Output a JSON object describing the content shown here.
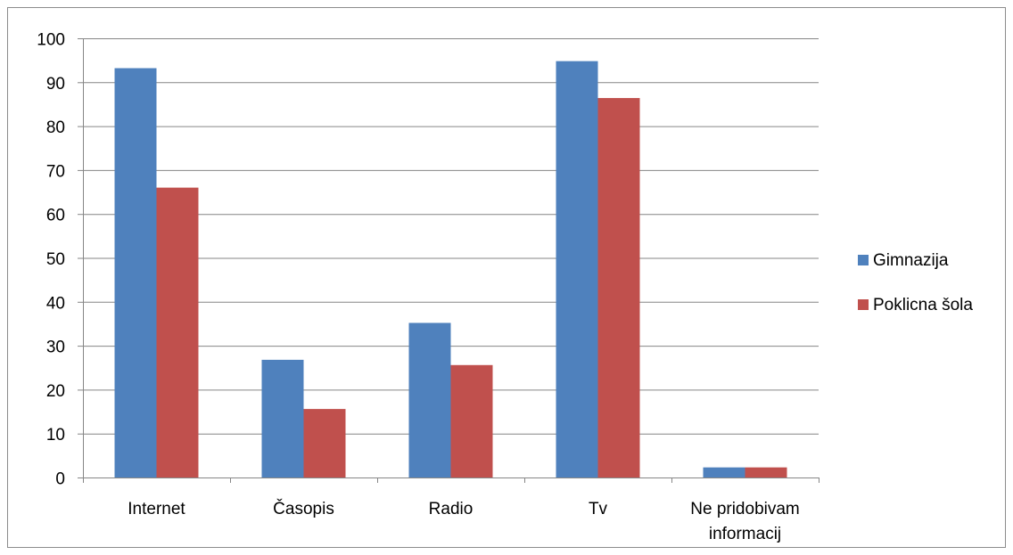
{
  "chart_data": {
    "type": "bar",
    "categories": [
      [
        "Internet"
      ],
      [
        "Časopis"
      ],
      [
        "Radio"
      ],
      [
        "Tv"
      ],
      [
        "Ne pridobivam",
        "informacij"
      ]
    ],
    "series": [
      {
        "name": "Gimnazija",
        "values": [
          93.2,
          26.8,
          35.2,
          94.8,
          2.3
        ],
        "color": "#4f81bd"
      },
      {
        "name": "Poklicna šola",
        "values": [
          66.0,
          15.6,
          25.6,
          86.4,
          2.3
        ],
        "color": "#c0504d"
      }
    ],
    "ylim": [
      0,
      100
    ],
    "yticks": [
      "0",
      "10",
      "20",
      "30",
      "40",
      "50",
      "60",
      "70",
      "80",
      "90",
      "100"
    ],
    "grid": true,
    "legend": "right",
    "title": "",
    "xlabel": "",
    "ylabel": ""
  }
}
